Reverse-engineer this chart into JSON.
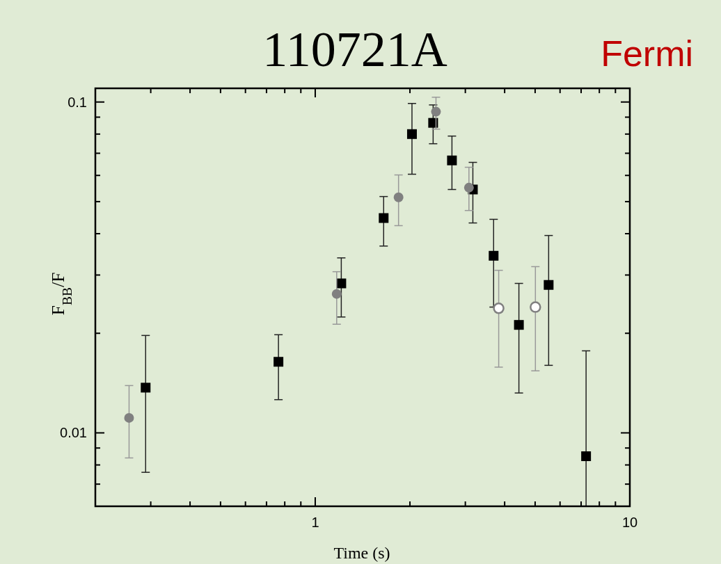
{
  "chart_data": {
    "type": "scatter",
    "title": "110721A",
    "annotations": [
      "Fermi"
    ],
    "xlabel": "Time (s)",
    "ylabel": "F$_{BB}$/F",
    "log": "xy",
    "xlim": [
      0.2,
      10
    ],
    "ylim": [
      0.006,
      0.11
    ],
    "xticks": [
      {
        "value": 0.3,
        "label": null
      },
      {
        "value": 0.4,
        "label": null
      },
      {
        "value": 0.5,
        "label": null
      },
      {
        "value": 0.6,
        "label": null
      },
      {
        "value": 0.7,
        "label": null
      },
      {
        "value": 0.8,
        "label": null
      },
      {
        "value": 0.9,
        "label": null
      },
      1,
      {
        "value": 2,
        "label": null
      },
      {
        "value": 3,
        "label": null
      },
      {
        "value": 4,
        "label": null
      },
      {
        "value": 5,
        "label": null
      },
      {
        "value": 6,
        "label": null
      },
      {
        "value": 7,
        "label": null
      },
      {
        "value": 8,
        "label": null
      },
      {
        "value": 9,
        "label": null
      },
      10
    ],
    "yticks": [
      {
        "value": 0.006,
        "label": null
      },
      {
        "value": 0.007,
        "label": null
      },
      {
        "value": 0.008,
        "label": null
      },
      {
        "value": 0.009,
        "label": null
      },
      0.01,
      {
        "value": 0.02,
        "label": null
      },
      {
        "value": 0.03,
        "label": null
      },
      {
        "value": 0.04,
        "label": null
      },
      {
        "value": 0.05,
        "label": null
      },
      {
        "value": 0.06,
        "label": null
      },
      {
        "value": 0.07,
        "label": null
      },
      {
        "value": 0.08,
        "label": null
      },
      {
        "value": 0.09,
        "label": null
      },
      0.1
    ],
    "series": [
      {
        "color": "#000000",
        "marker": "square",
        "x": [
          0.289,
          0.764,
          1.21,
          1.65,
          2.03,
          2.37,
          2.72,
          3.17,
          3.69,
          4.44,
          5.52,
          7.26
        ],
        "values": [
          0.0137,
          0.0164,
          0.0283,
          0.0446,
          0.08,
          0.0865,
          0.0666,
          0.0544,
          0.0343,
          0.0212,
          0.028,
          0.0085
        ],
        "errors": [
          [
            0.0076,
            0.0197
          ],
          [
            0.0126,
            0.0198
          ],
          [
            0.0224,
            0.0338
          ],
          [
            0.0367,
            0.0518
          ],
          [
            0.0605,
            0.099
          ],
          [
            0.0748,
            0.098
          ],
          [
            0.0544,
            0.0789
          ],
          [
            0.0431,
            0.0657
          ],
          [
            0.024,
            0.0442
          ],
          [
            0.0132,
            0.0283
          ],
          [
            0.016,
            0.0395
          ],
          [
            0.006,
            0.0177
          ]
        ]
      },
      {
        "color": "#808080",
        "marker": "circle",
        "x": [
          0.256,
          1.17,
          1.84,
          2.42,
          3.08
        ],
        "values": [
          0.0111,
          0.0263,
          0.0515,
          0.0935,
          0.0551
        ],
        "errors": [
          [
            0.0084,
            0.0139
          ],
          [
            0.0213,
            0.0307
          ],
          [
            0.0423,
            0.0602
          ],
          [
            0.0828,
            0.1034
          ],
          [
            0.047,
            0.0635
          ]
        ]
      },
      {
        "color": "#ffffff",
        "marker": "circle",
        "x": [
          3.83,
          5.01
        ],
        "values": [
          0.0238,
          0.024
        ],
        "errors": [
          [
            0.0158,
            0.031
          ],
          [
            0.0154,
            0.0318
          ]
        ]
      }
    ]
  }
}
